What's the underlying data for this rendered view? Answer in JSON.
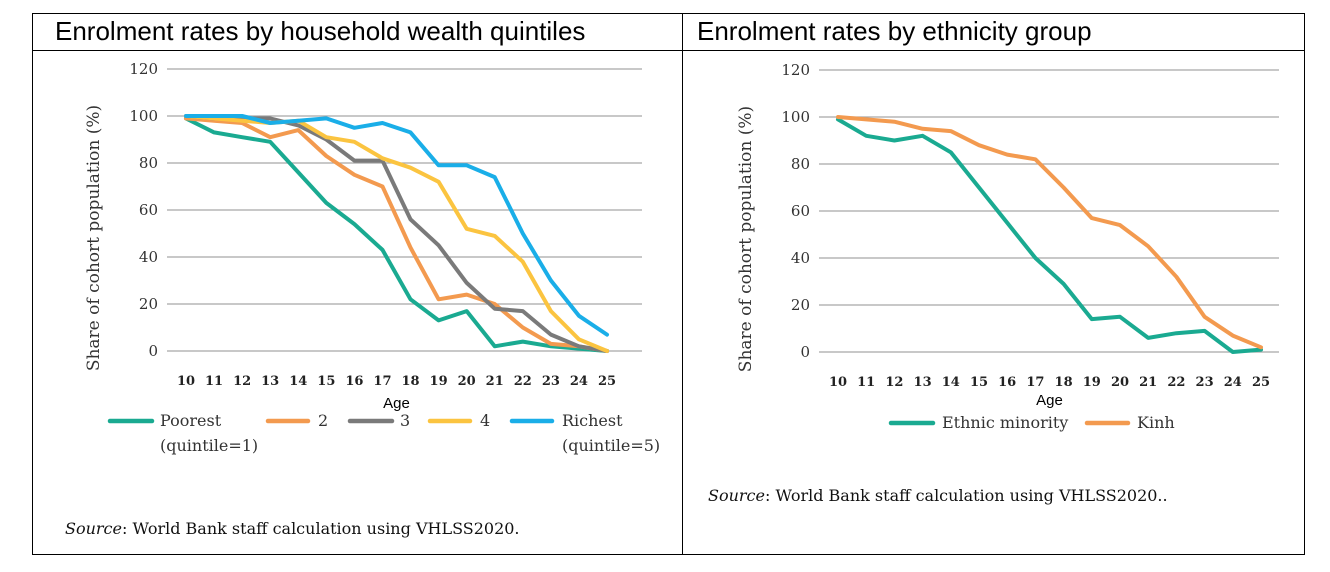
{
  "panels": {
    "left": {
      "title": "Enrolment rates by household wealth quintiles",
      "source_label": "Source",
      "source_text": ": World Bank staff calculation using VHLSS2020."
    },
    "right": {
      "title": "Enrolment rates by ethnicity group",
      "source_label": "Source",
      "source_text": ": World Bank staff calculation using VHLSS2020.."
    }
  },
  "chart_data": [
    {
      "type": "line",
      "title": "Enrolment rates by household wealth quintiles",
      "xlabel": "Age",
      "ylabel": "Share of cohort population (%)",
      "x": [
        10,
        11,
        12,
        13,
        14,
        15,
        16,
        17,
        18,
        19,
        20,
        21,
        22,
        23,
        24,
        25
      ],
      "ylim": [
        0,
        120
      ],
      "yticks": [
        0,
        20,
        40,
        60,
        80,
        100,
        120
      ],
      "grid": true,
      "legend_position": "bottom",
      "series": [
        {
          "name": "Poorest (quintile=1)",
          "legend_lines": [
            "Poorest",
            "(quintile=1)"
          ],
          "color": "#1aaa91",
          "values": [
            99,
            93,
            91,
            89,
            76,
            63,
            54,
            43,
            22,
            13,
            17,
            2,
            4,
            2,
            1,
            0
          ]
        },
        {
          "name": "2",
          "legend_lines": [
            "2"
          ],
          "color": "#f39a4f",
          "values": [
            99,
            98,
            97,
            91,
            94,
            83,
            75,
            70,
            44,
            22,
            24,
            20,
            10,
            3,
            2,
            0
          ]
        },
        {
          "name": "3",
          "legend_lines": [
            "3"
          ],
          "color": "#7a7a7a",
          "values": [
            100,
            99,
            99,
            99,
            96,
            90,
            81,
            81,
            56,
            45,
            29,
            18,
            17,
            7,
            2,
            0
          ]
        },
        {
          "name": "4",
          "legend_lines": [
            "4"
          ],
          "color": "#fbc440",
          "values": [
            100,
            99,
            98,
            97,
            98,
            91,
            89,
            82,
            78,
            72,
            52,
            49,
            38,
            17,
            5,
            0
          ]
        },
        {
          "name": "Richest (quintile=5)",
          "legend_lines": [
            "Richest",
            "(quintile=5)"
          ],
          "color": "#1aaee8",
          "values": [
            100,
            100,
            100,
            97,
            98,
            99,
            95,
            97,
            93,
            79,
            79,
            74,
            50,
            30,
            15,
            7
          ]
        }
      ]
    },
    {
      "type": "line",
      "title": "Enrolment rates by ethnicity group",
      "xlabel": "Age",
      "ylabel": "Share of cohort population (%)",
      "x": [
        10,
        11,
        12,
        13,
        14,
        15,
        16,
        17,
        18,
        19,
        20,
        21,
        22,
        23,
        24,
        25
      ],
      "ylim": [
        0,
        120
      ],
      "yticks": [
        0,
        20,
        40,
        60,
        80,
        100,
        120
      ],
      "grid": true,
      "legend_position": "bottom",
      "series": [
        {
          "name": "Ethnic minority",
          "legend_lines": [
            "Ethnic minority"
          ],
          "color": "#1aaa91",
          "values": [
            99,
            92,
            90,
            92,
            85,
            70,
            55,
            40,
            29,
            14,
            15,
            6,
            8,
            9,
            0,
            1
          ]
        },
        {
          "name": "Kinh",
          "legend_lines": [
            "Kinh"
          ],
          "color": "#f39a4f",
          "values": [
            100,
            99,
            98,
            95,
            94,
            88,
            84,
            82,
            70,
            57,
            54,
            45,
            32,
            15,
            7,
            2
          ]
        }
      ]
    }
  ]
}
